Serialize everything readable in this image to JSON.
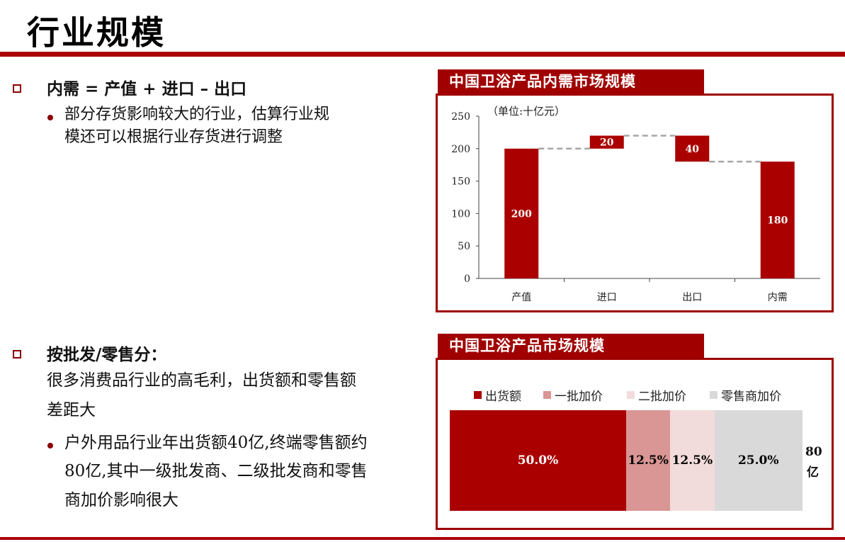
{
  "page": {
    "title": "行业规模"
  },
  "left": {
    "section1": {
      "heading": "内需 = 产值 + 进口 – 出口",
      "bullets": [
        {
          "lines": [
            "部分存货影响较大的行业，估算行业规",
            "模还可以根据行业存货进行调整"
          ]
        }
      ]
    },
    "section2": {
      "heading": "按批发/零售分：",
      "intro_lines": [
        "很多消费品行业的高毛利，出货额和零售额",
        "差距大"
      ],
      "bullets": [
        {
          "lines": [
            "户外用品行业年出货额40亿,终端零售额约",
            "80亿,其中一级批发商、二级批发商和零售",
            "商加价影响很大"
          ]
        }
      ]
    }
  },
  "chart1": {
    "panel_title": "中国卫浴产品内需市场规模",
    "chart_data": {
      "type": "bar",
      "subtype": "waterfall",
      "unit_label": "（单位:十亿元）",
      "categories": [
        "产值",
        "进口",
        "出口",
        "内需"
      ],
      "bars": [
        {
          "category": "产值",
          "base": 0,
          "top": 200,
          "label": "200"
        },
        {
          "category": "进口",
          "base": 200,
          "top": 220,
          "label": "20"
        },
        {
          "category": "出口",
          "base": 180,
          "top": 220,
          "label": "40"
        },
        {
          "category": "内需",
          "base": 0,
          "top": 180,
          "label": "180"
        }
      ],
      "ylim": [
        0,
        250
      ],
      "yticks": [
        "0",
        "50",
        "100",
        "150",
        "200",
        "250"
      ],
      "connector_style": "dashed",
      "bar_color": "#aa0000",
      "grid": false
    }
  },
  "chart2": {
    "panel_title": "中国卫浴产品市场规模",
    "chart_data": {
      "type": "bar",
      "subtype": "stacked-100-horizontal",
      "legend": [
        "出货额",
        "一批加价",
        "二批加价",
        "零售商加价"
      ],
      "segments": [
        {
          "name": "出货额",
          "value": 50.0,
          "label": "50.0%",
          "color": "#aa0000",
          "text_color": "#ffffff"
        },
        {
          "name": "一批加价",
          "value": 12.5,
          "label": "12.5%",
          "color": "#d99694",
          "text_color": "#000000"
        },
        {
          "name": "二批加价",
          "value": 12.5,
          "label": "12.5%",
          "color": "#f2dcdb",
          "text_color": "#000000"
        },
        {
          "name": "零售商加价",
          "value": 25.0,
          "label": "25.0%",
          "color": "#d9d9d9",
          "text_color": "#000000"
        }
      ],
      "total_label": [
        "80",
        "亿"
      ],
      "legend_position": "top"
    }
  }
}
